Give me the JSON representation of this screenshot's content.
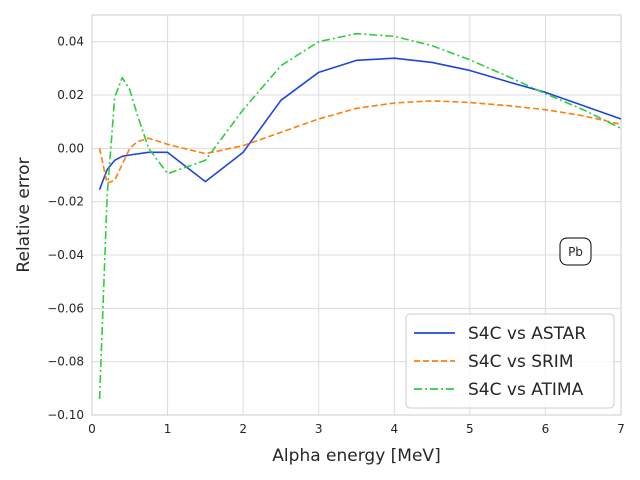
{
  "chart_data": {
    "type": "line",
    "title": "",
    "xlabel": "Alpha energy [MeV]",
    "ylabel": "Relative  error",
    "xlim": [
      0,
      7
    ],
    "ylim": [
      -0.1,
      0.05
    ],
    "xticks": [
      0,
      1,
      2,
      3,
      4,
      5,
      6,
      7
    ],
    "xtick_labels": [
      "0",
      "1",
      "2",
      "3",
      "4",
      "5",
      "6",
      "7"
    ],
    "yticks": [
      -0.1,
      -0.08,
      -0.06,
      -0.04,
      -0.02,
      0.0,
      0.02,
      0.04
    ],
    "ytick_labels": [
      "−0.10",
      "−0.08",
      "−0.06",
      "−0.04",
      "−0.02",
      "0.00",
      "0.02",
      "0.04"
    ],
    "grid": true,
    "legend_position": "lower-right",
    "annotation": "Pb",
    "series": [
      {
        "name": "S4C vs ASTAR",
        "color": "#1f45e0",
        "dash": "solid",
        "x": [
          0.1,
          0.2,
          0.3,
          0.4,
          0.5,
          0.75,
          1.0,
          1.5,
          2.0,
          2.5,
          3.0,
          3.5,
          4.0,
          4.5,
          5.0,
          5.5,
          6.0,
          6.5,
          7.0
        ],
        "y": [
          -0.0155,
          -0.008,
          -0.0045,
          -0.003,
          -0.0025,
          -0.0015,
          -0.0015,
          -0.0125,
          -0.0015,
          0.018,
          0.0285,
          0.033,
          0.0338,
          0.0322,
          0.0292,
          0.025,
          0.021,
          0.016,
          0.011
        ]
      },
      {
        "name": "S4C vs SRIM",
        "color": "#ff7f0e",
        "dash": "dashed",
        "x": [
          0.1,
          0.2,
          0.3,
          0.4,
          0.5,
          0.6,
          0.75,
          1.0,
          1.5,
          2.0,
          2.5,
          3.0,
          3.5,
          4.0,
          4.5,
          5.0,
          5.5,
          6.0,
          6.5,
          7.0
        ],
        "y": [
          0.0,
          -0.013,
          -0.012,
          -0.006,
          0.0,
          0.0025,
          0.0038,
          0.0015,
          -0.002,
          0.001,
          0.006,
          0.011,
          0.015,
          0.017,
          0.0178,
          0.0172,
          0.016,
          0.0145,
          0.0122,
          0.009
        ]
      },
      {
        "name": "S4C vs ATIMA",
        "color": "#2ecc40",
        "dash": "dashdot",
        "x": [
          0.1,
          0.2,
          0.3,
          0.4,
          0.5,
          0.6,
          0.75,
          1.0,
          1.5,
          2.0,
          2.5,
          3.0,
          3.5,
          4.0,
          4.5,
          5.0,
          5.5,
          6.0,
          6.5,
          7.0
        ],
        "y": [
          -0.094,
          -0.018,
          0.019,
          0.0265,
          0.022,
          0.0125,
          0.0,
          -0.0095,
          -0.0045,
          0.0145,
          0.031,
          0.04,
          0.043,
          0.042,
          0.0385,
          0.0332,
          0.027,
          0.0205,
          0.0145,
          0.0075
        ]
      }
    ]
  }
}
